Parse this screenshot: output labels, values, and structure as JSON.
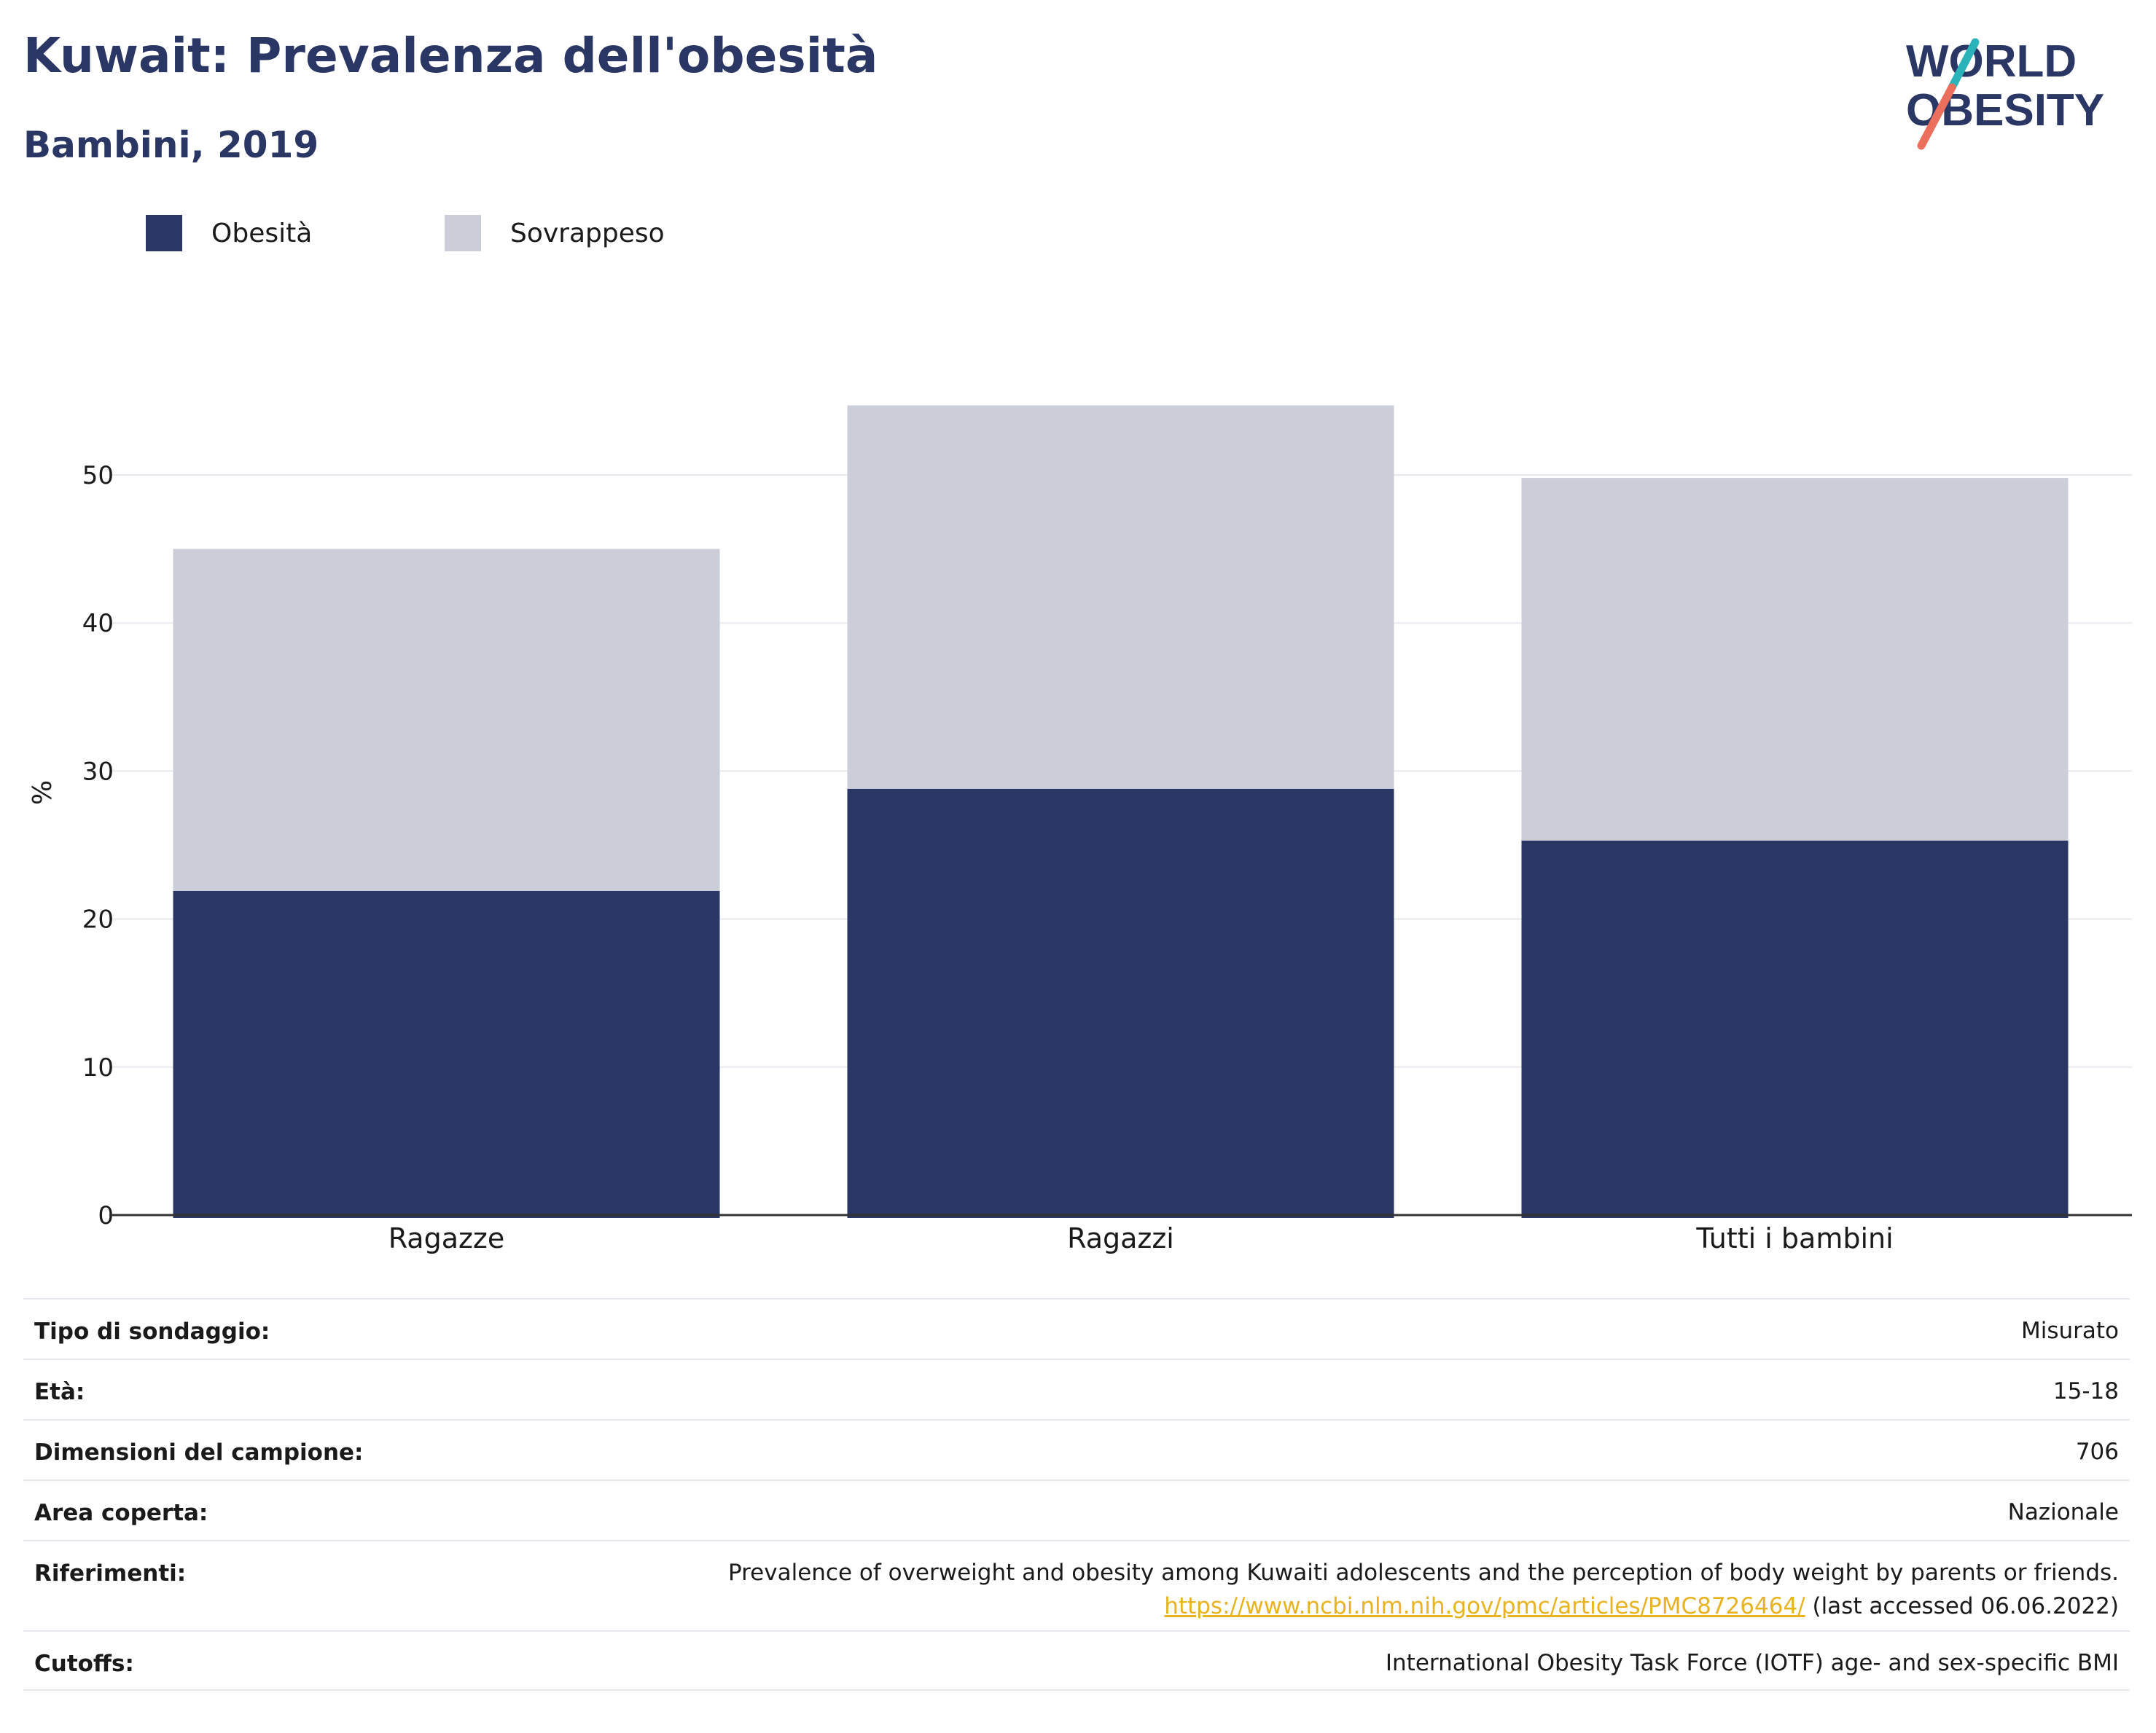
{
  "header": {
    "title": "Kuwait: Prevalenza dell'obesità",
    "subtitle": "Bambini, 2019"
  },
  "logo": {
    "line1": "WORLD",
    "line2": "OBESITY"
  },
  "colors": {
    "obesity": "#2a3663",
    "overweight": "#cbcdd8",
    "title": "#2a3663",
    "link": "#e8b31e"
  },
  "chart_data": {
    "type": "bar",
    "stacked": true,
    "categories": [
      "Ragazze",
      "Ragazzi",
      "Tutti i bambini"
    ],
    "series": [
      {
        "name": "Obesità",
        "values": [
          21.9,
          28.8,
          25.3
        ]
      },
      {
        "name": "Sovrappeso",
        "values": [
          23.1,
          25.9,
          24.5
        ]
      }
    ],
    "ylabel": "%",
    "ylim": [
      0,
      55
    ],
    "yticks": [
      0,
      10,
      20,
      30,
      40,
      50
    ],
    "grid": true,
    "legend_position": "top-left"
  },
  "meta": [
    {
      "label": "Tipo di sondaggio:",
      "value": "Misurato"
    },
    {
      "label": "Età:",
      "value": "15-18"
    },
    {
      "label": "Dimensioni del campione:",
      "value": "706"
    },
    {
      "label": "Area coperta:",
      "value": "Nazionale"
    },
    {
      "label": "Riferimenti:",
      "value": "Prevalence of overweight and obesity among Kuwaiti adolescents and the perception of body weight by parents or friends.",
      "link": "https://www.ncbi.nlm.nih.gov/pmc/articles/PMC8726464/",
      "link_suffix": " (last accessed 06.06.2022)"
    },
    {
      "label": "Cutoffs:",
      "value": "International Obesity Task Force (IOTF) age- and sex-specific BMI"
    }
  ]
}
